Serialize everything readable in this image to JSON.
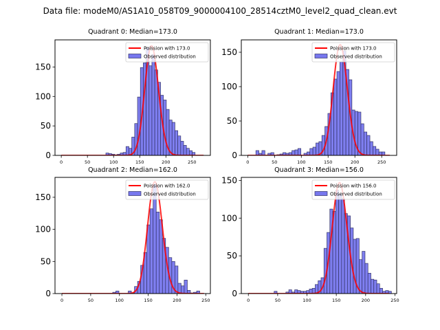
{
  "suptitle": "Data file: modeM0/AS1A10_058T09_9000004100_28514cztM0_level2_quad_clean.evt",
  "colors": {
    "bar_fill": "#7777ee",
    "bar_edge": "#333366",
    "poisson_line": "#ff0000"
  },
  "chart_data": [
    {
      "type": "bar",
      "title": "Quadrant 0: Median=173.0",
      "xlabel": "",
      "ylabel": "",
      "xlim": [
        -12,
        285
      ],
      "ylim": [
        0,
        196
      ],
      "xticks": [
        0,
        50,
        100,
        150,
        200,
        250
      ],
      "yticks": [
        0,
        50,
        100,
        150
      ],
      "legend": {
        "position": "top-right",
        "entries": [
          "Poission with 173.0",
          "Observed distribution"
        ]
      },
      "bin_width": 5.5,
      "bins": [
        {
          "x": 88,
          "y": 4
        },
        {
          "x": 93.5,
          "y": 3
        },
        {
          "x": 99,
          "y": 2
        },
        {
          "x": 104.5,
          "y": 1
        },
        {
          "x": 110,
          "y": 2
        },
        {
          "x": 115.5,
          "y": 4
        },
        {
          "x": 121,
          "y": 5
        },
        {
          "x": 126.5,
          "y": 15
        },
        {
          "x": 132,
          "y": 12
        },
        {
          "x": 137.5,
          "y": 31
        },
        {
          "x": 143,
          "y": 54
        },
        {
          "x": 148.5,
          "y": 99
        },
        {
          "x": 154,
          "y": 149
        },
        {
          "x": 159.5,
          "y": 157
        },
        {
          "x": 165,
          "y": 183
        },
        {
          "x": 170.5,
          "y": 152
        },
        {
          "x": 176,
          "y": 171
        },
        {
          "x": 181.5,
          "y": 145
        },
        {
          "x": 187,
          "y": 124
        },
        {
          "x": 192.5,
          "y": 102
        },
        {
          "x": 198,
          "y": 94
        },
        {
          "x": 203.5,
          "y": 78
        },
        {
          "x": 209,
          "y": 60
        },
        {
          "x": 214.5,
          "y": 56
        },
        {
          "x": 220,
          "y": 42
        },
        {
          "x": 225.5,
          "y": 33
        },
        {
          "x": 231,
          "y": 24
        },
        {
          "x": 236.5,
          "y": 17
        },
        {
          "x": 242,
          "y": 12
        },
        {
          "x": 247.5,
          "y": 8
        },
        {
          "x": 253,
          "y": 5
        }
      ],
      "poisson_mean": 173.0,
      "poisson_peak": 186,
      "poisson_range": [
        0,
        272
      ]
    },
    {
      "type": "bar",
      "title": "Quadrant 1: Median=173.0",
      "xlabel": "",
      "ylabel": "",
      "xlim": [
        -12,
        278
      ],
      "ylim": [
        0,
        168
      ],
      "xticks": [
        0,
        50,
        100,
        150,
        200,
        250
      ],
      "yticks": [
        0,
        50,
        100,
        150
      ],
      "legend": {
        "position": "top-right",
        "entries": [
          "Poission with 173.0",
          "Observed distribution"
        ]
      },
      "bin_width": 5.6,
      "bins": [
        {
          "x": 18,
          "y": 7
        },
        {
          "x": 23.6,
          "y": 3
        },
        {
          "x": 29.2,
          "y": 7
        },
        {
          "x": 34.8,
          "y": 0
        },
        {
          "x": 40.4,
          "y": 3
        },
        {
          "x": 46,
          "y": 4
        },
        {
          "x": 51.6,
          "y": 0
        },
        {
          "x": 57.2,
          "y": 1
        },
        {
          "x": 62.8,
          "y": 2
        },
        {
          "x": 68.4,
          "y": 4
        },
        {
          "x": 74,
          "y": 3
        },
        {
          "x": 79.6,
          "y": 4
        },
        {
          "x": 85.2,
          "y": 7
        },
        {
          "x": 90.8,
          "y": 8
        },
        {
          "x": 96.4,
          "y": 10
        },
        {
          "x": 102,
          "y": 0
        },
        {
          "x": 107.6,
          "y": 3
        },
        {
          "x": 113.2,
          "y": 5
        },
        {
          "x": 118.8,
          "y": 10
        },
        {
          "x": 124.4,
          "y": 12
        },
        {
          "x": 130,
          "y": 18
        },
        {
          "x": 135.6,
          "y": 20
        },
        {
          "x": 141.2,
          "y": 29
        },
        {
          "x": 146.8,
          "y": 42
        },
        {
          "x": 152.4,
          "y": 61
        },
        {
          "x": 158,
          "y": 91
        },
        {
          "x": 163.6,
          "y": 111
        },
        {
          "x": 169.2,
          "y": 122
        },
        {
          "x": 174.8,
          "y": 136
        },
        {
          "x": 180.4,
          "y": 152
        },
        {
          "x": 186,
          "y": 125
        },
        {
          "x": 191.6,
          "y": 110
        },
        {
          "x": 197.2,
          "y": 66
        },
        {
          "x": 202.8,
          "y": 64
        },
        {
          "x": 208.4,
          "y": 63
        },
        {
          "x": 214,
          "y": 46
        },
        {
          "x": 219.6,
          "y": 34
        },
        {
          "x": 225.2,
          "y": 29
        },
        {
          "x": 230.8,
          "y": 20
        },
        {
          "x": 236.4,
          "y": 13
        },
        {
          "x": 242,
          "y": 9
        },
        {
          "x": 247.6,
          "y": 5
        },
        {
          "x": 253.2,
          "y": 5
        }
      ],
      "poisson_mean": 173.0,
      "poisson_peak": 161,
      "poisson_range": [
        0,
        265
      ]
    },
    {
      "type": "bar",
      "title": "Quadrant 2: Median=162.0",
      "xlabel": "",
      "ylabel": "",
      "xlim": [
        -12,
        258
      ],
      "ylim": [
        0,
        181
      ],
      "xticks": [
        0,
        50,
        100,
        150,
        200,
        250
      ],
      "yticks": [
        0,
        50,
        100,
        150
      ],
      "legend": {
        "position": "top-right",
        "entries": [
          "Poission with 162.0",
          "Observed distribution"
        ]
      },
      "bin_width": 5.4,
      "bins": [
        {
          "x": 91,
          "y": 2
        },
        {
          "x": 96.4,
          "y": 4
        },
        {
          "x": 101.8,
          "y": 0
        },
        {
          "x": 107.2,
          "y": 0
        },
        {
          "x": 112.6,
          "y": 0
        },
        {
          "x": 118,
          "y": 4
        },
        {
          "x": 123.4,
          "y": 1
        },
        {
          "x": 128.8,
          "y": 11
        },
        {
          "x": 134.2,
          "y": 19
        },
        {
          "x": 139.6,
          "y": 44
        },
        {
          "x": 145,
          "y": 64
        },
        {
          "x": 150.4,
          "y": 107
        },
        {
          "x": 155.8,
          "y": 132
        },
        {
          "x": 161.2,
          "y": 170
        },
        {
          "x": 166.6,
          "y": 127
        },
        {
          "x": 172,
          "y": 115
        },
        {
          "x": 177.4,
          "y": 86
        },
        {
          "x": 182.8,
          "y": 72
        },
        {
          "x": 188.2,
          "y": 56
        },
        {
          "x": 193.6,
          "y": 50
        },
        {
          "x": 199,
          "y": 43
        },
        {
          "x": 204.4,
          "y": 16
        },
        {
          "x": 209.8,
          "y": 12
        },
        {
          "x": 215.2,
          "y": 21
        },
        {
          "x": 220.6,
          "y": 5
        },
        {
          "x": 226,
          "y": 1
        },
        {
          "x": 231.4,
          "y": 2
        },
        {
          "x": 236.8,
          "y": 4
        }
      ],
      "poisson_mean": 162.0,
      "poisson_peak": 174,
      "poisson_range": [
        0,
        247
      ]
    },
    {
      "type": "bar",
      "title": "Quadrant 3: Median=156.0",
      "xlabel": "",
      "ylabel": "",
      "xlim": [
        -12,
        253
      ],
      "ylim": [
        0,
        154
      ],
      "xticks": [
        0,
        50,
        100,
        150,
        200,
        250
      ],
      "yticks": [
        0,
        50,
        100,
        150
      ],
      "legend": {
        "position": "top-right",
        "entries": [
          "Poission with 156.0",
          "Observed distribution"
        ]
      },
      "bin_width": 5.0,
      "bins": [
        {
          "x": 46.5,
          "y": 3
        },
        {
          "x": 51.5,
          "y": 0
        },
        {
          "x": 56.5,
          "y": 0
        },
        {
          "x": 61.5,
          "y": 0
        },
        {
          "x": 66.5,
          "y": 2
        },
        {
          "x": 71.5,
          "y": 5
        },
        {
          "x": 76.5,
          "y": 2
        },
        {
          "x": 81.5,
          "y": 5
        },
        {
          "x": 86.5,
          "y": 4
        },
        {
          "x": 91.5,
          "y": 3
        },
        {
          "x": 96.5,
          "y": 3
        },
        {
          "x": 101.5,
          "y": 4
        },
        {
          "x": 106.5,
          "y": 6
        },
        {
          "x": 111.5,
          "y": 7
        },
        {
          "x": 116.5,
          "y": 12
        },
        {
          "x": 121.5,
          "y": 17
        },
        {
          "x": 126.5,
          "y": 21
        },
        {
          "x": 131.5,
          "y": 60
        },
        {
          "x": 136.5,
          "y": 81
        },
        {
          "x": 141.5,
          "y": 112
        },
        {
          "x": 146.5,
          "y": 109
        },
        {
          "x": 151.5,
          "y": 137
        },
        {
          "x": 156.5,
          "y": 132
        },
        {
          "x": 161.5,
          "y": 126
        },
        {
          "x": 166.5,
          "y": 106
        },
        {
          "x": 171.5,
          "y": 103
        },
        {
          "x": 176.5,
          "y": 87
        },
        {
          "x": 181.5,
          "y": 72
        },
        {
          "x": 186.5,
          "y": 73
        },
        {
          "x": 191.5,
          "y": 45
        },
        {
          "x": 196.5,
          "y": 56
        },
        {
          "x": 201.5,
          "y": 40
        },
        {
          "x": 206.5,
          "y": 27
        },
        {
          "x": 211.5,
          "y": 19
        },
        {
          "x": 216.5,
          "y": 18
        },
        {
          "x": 221.5,
          "y": 13
        },
        {
          "x": 226.5,
          "y": 7
        },
        {
          "x": 231.5,
          "y": 3
        },
        {
          "x": 236.5,
          "y": 4
        },
        {
          "x": 241.5,
          "y": 3
        }
      ],
      "poisson_mean": 156.0,
      "poisson_peak": 147,
      "poisson_range": [
        0,
        240
      ]
    }
  ]
}
